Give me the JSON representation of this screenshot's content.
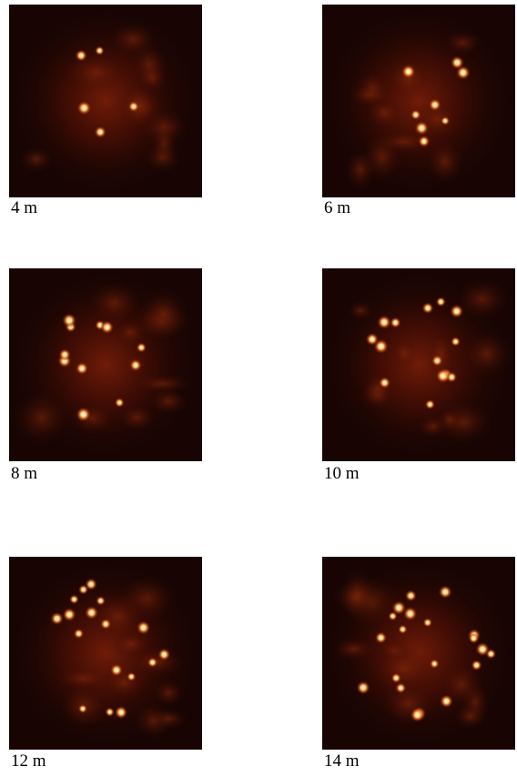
{
  "panels": [
    {
      "label": "4 m"
    },
    {
      "label": "6 m"
    },
    {
      "label": "8 m"
    },
    {
      "label": "10 m"
    },
    {
      "label": "12 m"
    },
    {
      "label": "14 m"
    }
  ]
}
